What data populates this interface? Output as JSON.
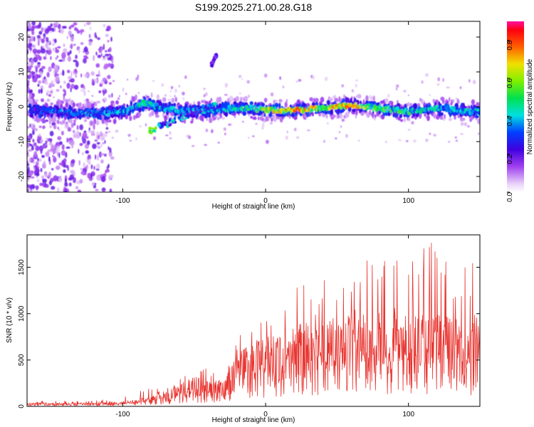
{
  "title": "S199.2025.271.00.28.G18",
  "chart_data": [
    {
      "type": "heatmap",
      "name": "spectrogram",
      "xlabel": "Height of straight line (km)",
      "ylabel": "Frequency (Hz)",
      "xlim": [
        -167,
        150
      ],
      "ylim": [
        -24.5,
        24.5
      ],
      "xticks": [
        -100,
        0,
        100
      ],
      "xtick_labels": [
        "-100",
        "0",
        "100"
      ],
      "yticks": [
        -20,
        -10,
        0,
        10,
        20
      ],
      "ytick_labels": [
        "-20",
        "-10",
        "0",
        "10",
        "20"
      ],
      "colorbar": {
        "label": "Normalized spectral amplitude",
        "range": [
          0,
          0.9
        ],
        "ticks": [
          0,
          0.2,
          0.4,
          0.6,
          0.8
        ],
        "tick_labels": [
          "0.0",
          "0.2",
          "0.4",
          "0.6",
          "0.8"
        ]
      },
      "ridge": {
        "x": [
          -165,
          -140,
          -120,
          -100,
          -85,
          -70,
          -50,
          -30,
          -10,
          0,
          20,
          40,
          60,
          80,
          100,
          120,
          150
        ],
        "freq": [
          -1,
          -1.5,
          -2,
          -1.5,
          1,
          -0.5,
          -1.5,
          -0.5,
          -0.5,
          -1,
          -1,
          -0.5,
          0.5,
          -0.5,
          -1.5,
          -0.5,
          -1.5
        ],
        "peak_amplitude": [
          0.35,
          0.4,
          0.4,
          0.45,
          0.55,
          0.45,
          0.45,
          0.45,
          0.6,
          0.75,
          0.85,
          0.75,
          0.85,
          0.6,
          0.55,
          0.5,
          0.45
        ]
      },
      "secondary_track": {
        "x": [
          -82,
          -35
        ],
        "freq": [
          -7,
          1
        ]
      },
      "isolated_feature": {
        "x": [
          -38,
          -34
        ],
        "freq": [
          12,
          15
        ]
      }
    },
    {
      "type": "line",
      "name": "snr",
      "xlabel": "Height of straight line (km)",
      "ylabel": "SNR (10 * v/v)",
      "xlim": [
        -167,
        150
      ],
      "ylim": [
        0,
        1850
      ],
      "xticks": [
        -100,
        0,
        100
      ],
      "xtick_labels": [
        "-100",
        "0",
        "100"
      ],
      "yticks": [
        0,
        500,
        1000,
        1500
      ],
      "ytick_labels": [
        "0",
        "500",
        "1000",
        "1500"
      ],
      "color": "#e8342f",
      "envelope": {
        "x": [
          -167,
          -140,
          -120,
          -100,
          -90,
          -80,
          -70,
          -60,
          -50,
          -40,
          -30,
          -25,
          -20,
          -10,
          0,
          10,
          20,
          30,
          40,
          50,
          60,
          70,
          80,
          90,
          100,
          110,
          120,
          130,
          140,
          150
        ],
        "mean": [
          30,
          30,
          30,
          40,
          60,
          90,
          130,
          200,
          260,
          230,
          230,
          380,
          470,
          560,
          620,
          660,
          700,
          730,
          760,
          770,
          790,
          800,
          810,
          810,
          800,
          800,
          790,
          780,
          740,
          700
        ],
        "max": [
          60,
          60,
          60,
          110,
          160,
          230,
          200,
          320,
          380,
          450,
          330,
          560,
          760,
          820,
          950,
          1050,
          1300,
          1350,
          1400,
          1520,
          1600,
          1700,
          1550,
          1620,
          1600,
          1700,
          1850,
          1720,
          1700,
          1700
        ]
      }
    }
  ]
}
